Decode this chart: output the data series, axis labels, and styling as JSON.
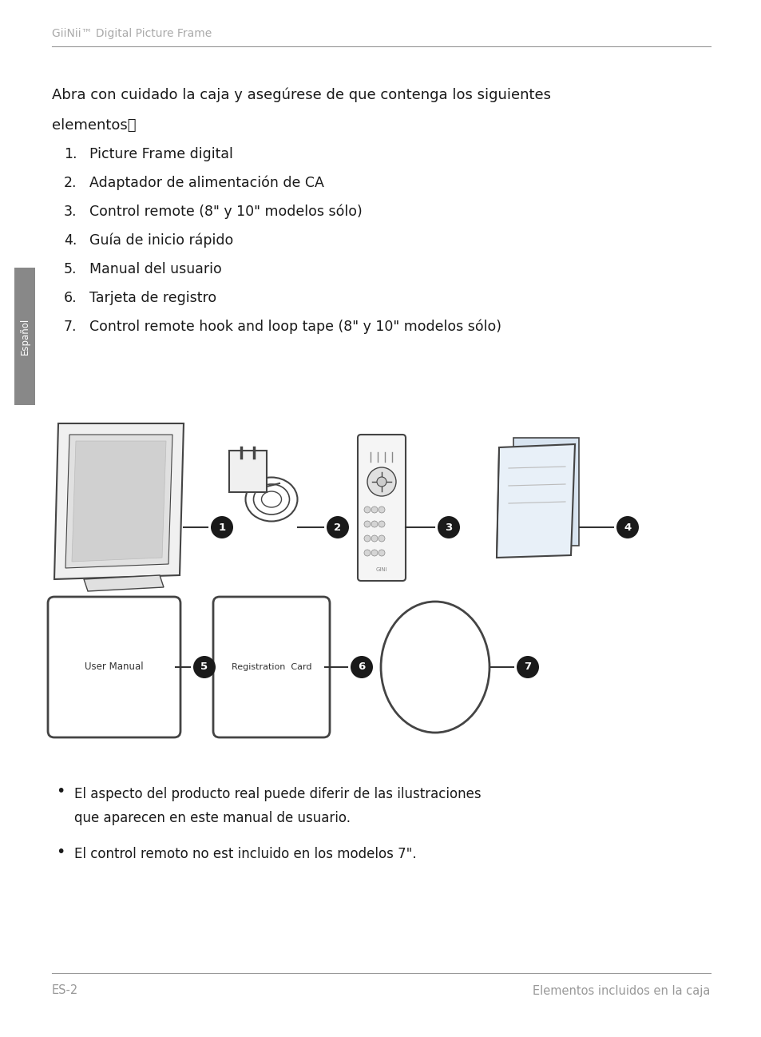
{
  "header_text": "GiiNii™ Digital Picture Frame",
  "header_color": "#aaaaaa",
  "header_line_color": "#999999",
  "footer_left": "ES-2",
  "footer_right": "Elementos incluidos en la caja",
  "footer_color": "#999999",
  "footer_line_color": "#999999",
  "sidebar_text": "Español",
  "sidebar_bg": "#888888",
  "sidebar_text_color": "#ffffff",
  "body_color": "#1a1a1a",
  "background_color": "#ffffff",
  "intro_line1": "Abra con cuidado la caja y asegúrese de que contenga los siguientes",
  "intro_line2": "elementos：",
  "list_items": [
    "Picture Frame digital",
    "Adaptador de alimentación de CA",
    "Control remote (8\" y 10\" modelos sólo)",
    "Guía de inicio rápido",
    "Manual del usuario",
    "Tarjeta de registro",
    "Control remote hook and loop tape (8\" y 10\" modelos sólo)"
  ],
  "bullet1_line1": "El aspecto del producto real puede diferir de las ilustraciones",
  "bullet1_line2": "que aparecen en este manual de usuario.",
  "bullet2": "El control remoto no est incluido en los modelos 7\".",
  "circle_color": "#1a1a1a",
  "circle_text_color": "#ffffff",
  "line_color": "#333333",
  "draw_color": "#444444"
}
